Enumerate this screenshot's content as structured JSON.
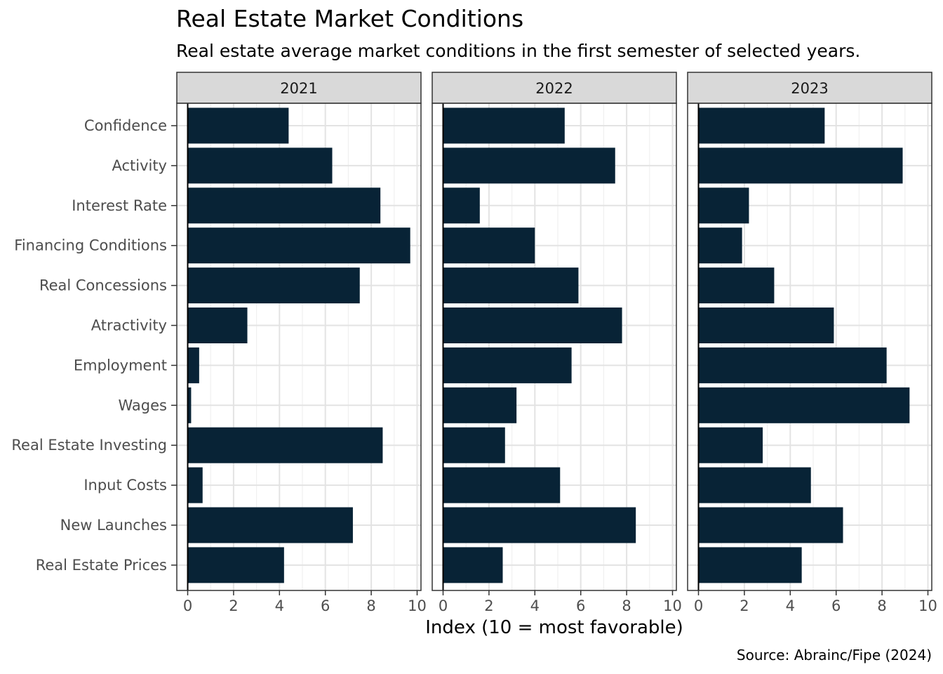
{
  "chart_data": {
    "type": "bar",
    "orientation": "horizontal",
    "title": "Real Estate Market Conditions",
    "subtitle": "Real estate average market conditions in the first semester of selected years.",
    "xlabel": "Index (10 = most favorable)",
    "ylabel": "",
    "caption": "Source: Abrainc/Fipe (2024)",
    "xlim": [
      0,
      10
    ],
    "xticks": [
      "0",
      "2",
      "4",
      "6",
      "8",
      "10"
    ],
    "grid": true,
    "bar_color": "#082336",
    "categories": [
      "Confidence",
      "Activity",
      "Interest Rate",
      "Financing Conditions",
      "Real Concessions",
      "Atractivity",
      "Employment",
      "Wages",
      "Real Estate Investing",
      "Input Costs",
      "New Launches",
      "Real Estate Prices"
    ],
    "panels": [
      {
        "name": "2021",
        "values": [
          4.4,
          6.3,
          8.4,
          9.7,
          7.5,
          2.6,
          0.5,
          0.15,
          8.5,
          0.65,
          7.2,
          4.2
        ]
      },
      {
        "name": "2022",
        "values": [
          5.3,
          7.5,
          1.6,
          4.0,
          5.9,
          7.8,
          5.6,
          3.2,
          2.7,
          5.1,
          8.4,
          2.6
        ]
      },
      {
        "name": "2023",
        "values": [
          5.5,
          8.9,
          2.2,
          1.9,
          3.3,
          5.9,
          8.2,
          9.2,
          2.8,
          4.9,
          6.3,
          4.5
        ]
      }
    ]
  }
}
